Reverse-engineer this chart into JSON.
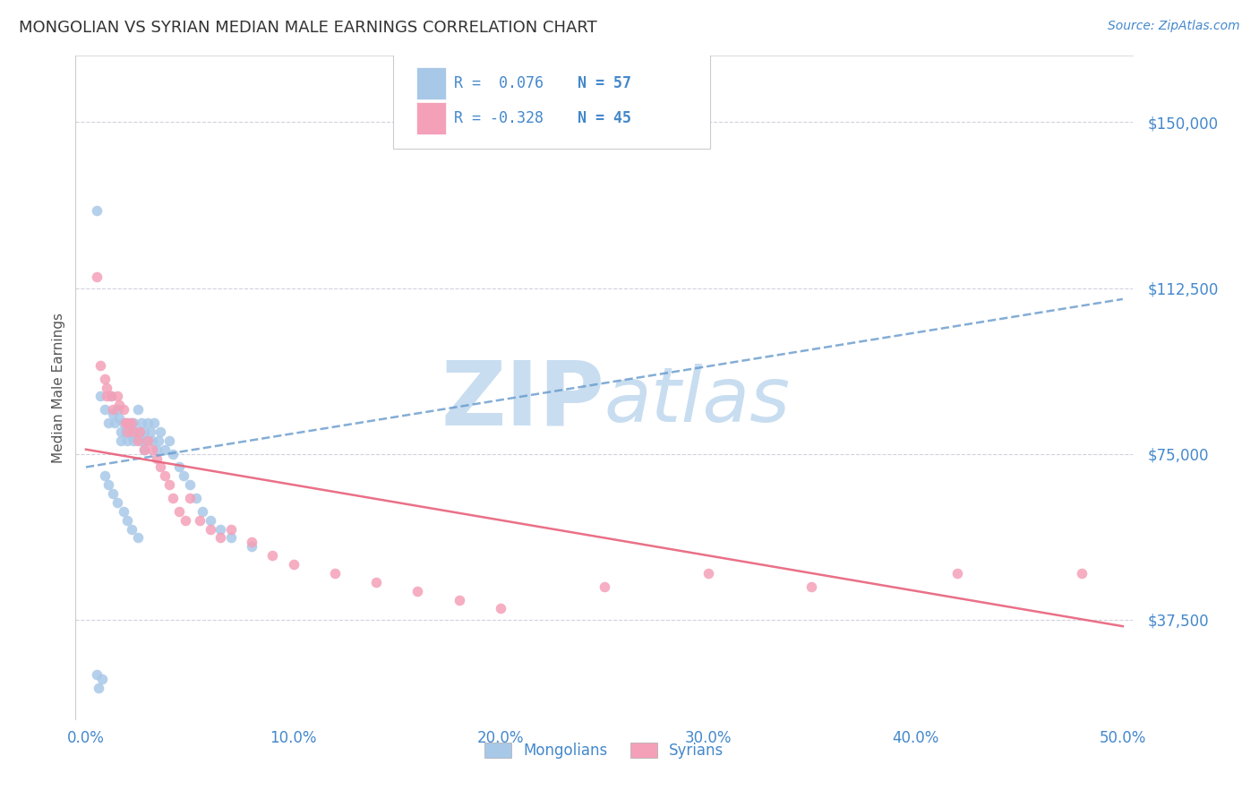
{
  "title": "MONGOLIAN VS SYRIAN MEDIAN MALE EARNINGS CORRELATION CHART",
  "source": "Source: ZipAtlas.com",
  "ylabel": "Median Male Earnings",
  "xlim": [
    -0.005,
    0.505
  ],
  "ylim": [
    15000,
    165000
  ],
  "yticks": [
    37500,
    75000,
    112500,
    150000
  ],
  "ytick_labels": [
    "$37,500",
    "$75,000",
    "$112,500",
    "$150,000"
  ],
  "xticks": [
    0.0,
    0.1,
    0.2,
    0.3,
    0.4,
    0.5
  ],
  "xtick_labels": [
    "0.0%",
    "10.0%",
    "20.0%",
    "30.0%",
    "40.0%",
    "50.0%"
  ],
  "mongolian_color": "#a8c8e8",
  "syrian_color": "#f4a0b8",
  "mongolian_line_color": "#6699cc",
  "syrian_line_color": "#e8607a",
  "legend_text_color": "#4488cc",
  "ytick_color": "#4488cc",
  "xtick_color": "#4488cc",
  "watermark_color": "#c8ddf0",
  "background_color": "#ffffff",
  "grid_color": "#ccccdd",
  "mongolian_scatter_x": [
    0.005,
    0.007,
    0.009,
    0.011,
    0.012,
    0.013,
    0.014,
    0.015,
    0.016,
    0.017,
    0.017,
    0.018,
    0.019,
    0.02,
    0.021,
    0.022,
    0.022,
    0.023,
    0.023,
    0.024,
    0.025,
    0.026,
    0.027,
    0.027,
    0.028,
    0.028,
    0.029,
    0.03,
    0.031,
    0.032,
    0.033,
    0.034,
    0.035,
    0.036,
    0.038,
    0.04,
    0.042,
    0.045,
    0.047,
    0.05,
    0.053,
    0.056,
    0.06,
    0.065,
    0.07,
    0.08,
    0.009,
    0.011,
    0.013,
    0.015,
    0.018,
    0.02,
    0.022,
    0.025,
    0.005,
    0.008,
    0.006
  ],
  "mongolian_scatter_y": [
    130000,
    88000,
    85000,
    82000,
    88000,
    84000,
    82000,
    85000,
    83000,
    80000,
    78000,
    82000,
    80000,
    78000,
    82000,
    80000,
    79000,
    82000,
    78000,
    80000,
    85000,
    80000,
    78000,
    82000,
    80000,
    76000,
    78000,
    82000,
    80000,
    78000,
    82000,
    76000,
    78000,
    80000,
    76000,
    78000,
    75000,
    72000,
    70000,
    68000,
    65000,
    62000,
    60000,
    58000,
    56000,
    54000,
    70000,
    68000,
    66000,
    64000,
    62000,
    60000,
    58000,
    56000,
    25000,
    24000,
    22000
  ],
  "syrian_scatter_x": [
    0.005,
    0.007,
    0.009,
    0.01,
    0.012,
    0.013,
    0.015,
    0.016,
    0.018,
    0.019,
    0.02,
    0.022,
    0.023,
    0.025,
    0.026,
    0.028,
    0.03,
    0.032,
    0.034,
    0.036,
    0.038,
    0.04,
    0.042,
    0.045,
    0.048,
    0.05,
    0.055,
    0.06,
    0.065,
    0.07,
    0.08,
    0.09,
    0.1,
    0.12,
    0.14,
    0.16,
    0.18,
    0.2,
    0.25,
    0.3,
    0.35,
    0.42,
    0.48,
    0.01,
    0.02
  ],
  "syrian_scatter_y": [
    115000,
    95000,
    92000,
    90000,
    88000,
    85000,
    88000,
    86000,
    85000,
    82000,
    80000,
    82000,
    80000,
    78000,
    80000,
    76000,
    78000,
    76000,
    74000,
    72000,
    70000,
    68000,
    65000,
    62000,
    60000,
    65000,
    60000,
    58000,
    56000,
    58000,
    55000,
    52000,
    50000,
    48000,
    46000,
    44000,
    42000,
    40000,
    45000,
    48000,
    45000,
    48000,
    48000,
    88000,
    82000
  ],
  "mongolian_trend_x": [
    0.0,
    0.5
  ],
  "mongolian_trend_y": [
    72000,
    110000
  ],
  "syrian_trend_x": [
    0.0,
    0.5
  ],
  "syrian_trend_y": [
    76000,
    36000
  ]
}
